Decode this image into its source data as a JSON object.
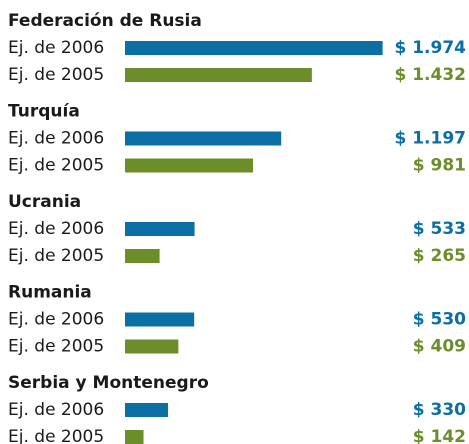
{
  "chart_data": {
    "type": "bar",
    "orientation": "horizontal",
    "categories": [
      "Federación de Rusia",
      "Turquía",
      "Ucrania",
      "Rumania",
      "Serbia y Montenegro"
    ],
    "series": [
      {
        "name": "Ej. de 2006",
        "color": "#0b6fa4",
        "values": [
          1974,
          1197,
          533,
          530,
          330
        ],
        "value_labels": [
          "$ 1.974",
          "$ 1.197",
          "$ 533",
          "$ 530",
          "$ 330"
        ]
      },
      {
        "name": "Ej. de 2005",
        "color": "#6b8e2b",
        "values": [
          1432,
          981,
          265,
          409,
          142
        ],
        "value_labels": [
          "$ 1.432",
          "$ 981",
          "$ 265",
          "$ 409",
          "$ 142"
        ]
      }
    ],
    "xlim": [
      0,
      2000
    ]
  }
}
